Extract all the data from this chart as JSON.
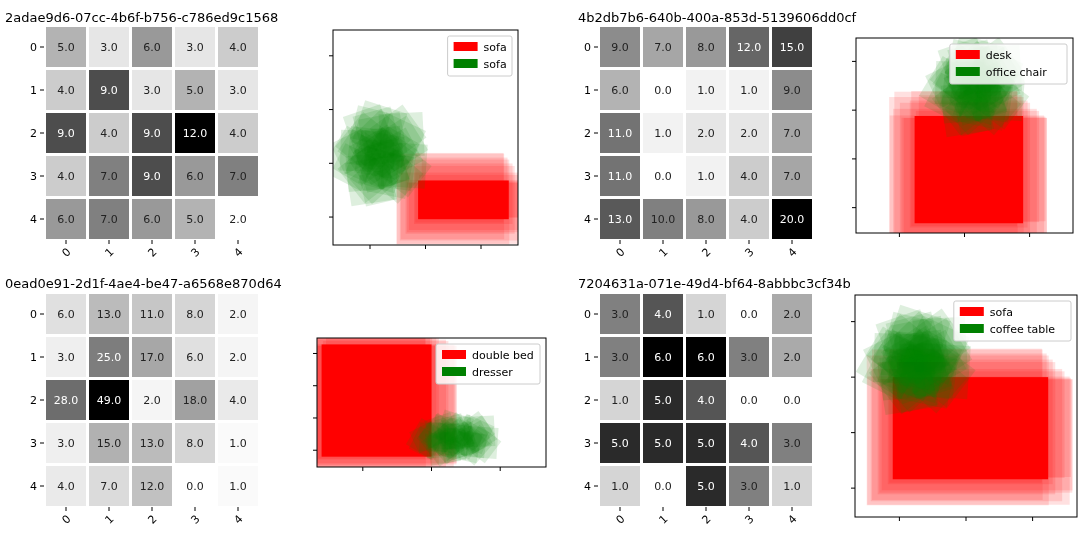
{
  "chart_data": [
    {
      "type": "heatmap",
      "title": "2adae9d6-07cc-4b6f-b756-c786ed9c1568",
      "categories": [
        "0",
        "1",
        "2",
        "3",
        "4"
      ],
      "y_categories": [
        "0",
        "1",
        "2",
        "3",
        "4"
      ],
      "cells": [
        [
          5,
          3,
          6,
          3,
          4
        ],
        [
          4,
          9,
          3,
          5,
          3
        ],
        [
          9,
          4,
          9,
          12,
          4
        ],
        [
          4,
          7,
          9,
          6,
          7
        ],
        [
          6,
          7,
          6,
          5,
          2
        ]
      ],
      "cell_labels": [
        [
          "5.0",
          "3.0",
          "6.0",
          "3.0",
          "4.0"
        ],
        [
          "4.0",
          "9.0",
          "3.0",
          "5.0",
          "3.0"
        ],
        [
          "9.0",
          "4.0",
          "9.0",
          "12.0",
          "4.0"
        ],
        [
          "4.0",
          "7.0",
          "9.0",
          "6.0",
          "7.0"
        ],
        [
          "6.0",
          "7.0",
          "6.0",
          "5.0",
          "2.0"
        ]
      ]
    },
    {
      "type": "other",
      "series": [
        {
          "name": "sofa",
          "color": "#ff0000"
        },
        {
          "name": "sofa",
          "color": "#008000"
        }
      ],
      "legend": "top right"
    },
    {
      "type": "heatmap",
      "title": "4b2db7b6-640b-400a-853d-5139606dd0cf",
      "categories": [
        "0",
        "1",
        "2",
        "3",
        "4"
      ],
      "y_categories": [
        "0",
        "1",
        "2",
        "3",
        "4"
      ],
      "cells": [
        [
          9,
          7,
          8,
          12,
          15
        ],
        [
          6,
          0,
          1,
          1,
          9
        ],
        [
          11,
          1,
          2,
          2,
          7
        ],
        [
          11,
          0,
          1,
          4,
          7
        ],
        [
          13,
          10,
          8,
          4,
          20
        ]
      ],
      "cell_labels": [
        [
          "9.0",
          "7.0",
          "8.0",
          "12.0",
          "15.0"
        ],
        [
          "6.0",
          "0.0",
          "1.0",
          "1.0",
          "9.0"
        ],
        [
          "11.0",
          "1.0",
          "2.0",
          "2.0",
          "7.0"
        ],
        [
          "11.0",
          "0.0",
          "1.0",
          "4.0",
          "7.0"
        ],
        [
          "13.0",
          "10.0",
          "8.0",
          "4.0",
          "20.0"
        ]
      ]
    },
    {
      "type": "other",
      "series": [
        {
          "name": "desk",
          "color": "#ff0000"
        },
        {
          "name": "office chair",
          "color": "#008000"
        }
      ],
      "legend": "top right"
    },
    {
      "type": "heatmap",
      "title": "0ead0e91-2d1f-4ae4-be47-a6568e870d64",
      "categories": [
        "0",
        "1",
        "2",
        "3",
        "4"
      ],
      "y_categories": [
        "0",
        "1",
        "2",
        "3",
        "4"
      ],
      "cells": [
        [
          6,
          13,
          11,
          8,
          2
        ],
        [
          3,
          25,
          17,
          6,
          2
        ],
        [
          28,
          49,
          2,
          18,
          4
        ],
        [
          3,
          15,
          13,
          8,
          1
        ],
        [
          4,
          7,
          12,
          0,
          1
        ]
      ],
      "cell_labels": [
        [
          "6.0",
          "13.0",
          "11.0",
          "8.0",
          "2.0"
        ],
        [
          "3.0",
          "25.0",
          "17.0",
          "6.0",
          "2.0"
        ],
        [
          "28.0",
          "49.0",
          "2.0",
          "18.0",
          "4.0"
        ],
        [
          "3.0",
          "15.0",
          "13.0",
          "8.0",
          "1.0"
        ],
        [
          "4.0",
          "7.0",
          "12.0",
          "0.0",
          "1.0"
        ]
      ]
    },
    {
      "type": "other",
      "series": [
        {
          "name": "double bed",
          "color": "#ff0000"
        },
        {
          "name": "dresser",
          "color": "#008000"
        }
      ],
      "legend": "top right"
    },
    {
      "type": "heatmap",
      "title": "7204631a-071e-49d4-bf64-8abbbc3cf34b",
      "categories": [
        "0",
        "1",
        "2",
        "3",
        "4"
      ],
      "y_categories": [
        "0",
        "1",
        "2",
        "3",
        "4"
      ],
      "cells": [
        [
          3,
          4,
          1,
          0,
          2
        ],
        [
          3,
          6,
          6,
          3,
          2
        ],
        [
          1,
          5,
          4,
          0,
          0
        ],
        [
          5,
          5,
          5,
          4,
          3
        ],
        [
          1,
          0,
          5,
          3,
          1
        ]
      ],
      "cell_labels": [
        [
          "3.0",
          "4.0",
          "1.0",
          "0.0",
          "2.0"
        ],
        [
          "3.0",
          "6.0",
          "6.0",
          "3.0",
          "2.0"
        ],
        [
          "1.0",
          "5.0",
          "4.0",
          "0.0",
          "0.0"
        ],
        [
          "5.0",
          "5.0",
          "5.0",
          "4.0",
          "3.0"
        ],
        [
          "1.0",
          "0.0",
          "5.0",
          "3.0",
          "1.0"
        ]
      ]
    },
    {
      "type": "other",
      "series": [
        {
          "name": "sofa",
          "color": "#ff0000"
        },
        {
          "name": "coffee table",
          "color": "#008000"
        }
      ],
      "legend": "top right"
    }
  ]
}
